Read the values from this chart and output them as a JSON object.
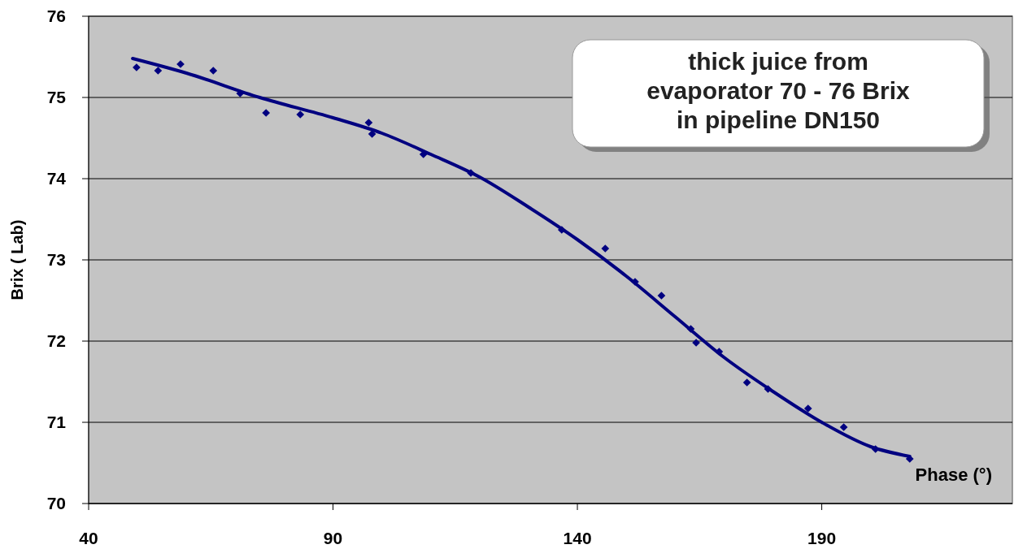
{
  "chart_data": {
    "type": "scatter",
    "xlabel": "Phase (°)",
    "ylabel": "Brix ( Lab)",
    "annotations": [
      "thick juice from\nevaporator 70 - 76 Brix\nin pipeline DN150"
    ],
    "xlim": [
      40,
      229
    ],
    "xticks": [
      40,
      90,
      140,
      190
    ],
    "ylim": [
      70,
      76
    ],
    "yticks": [
      70,
      71,
      72,
      73,
      74,
      75,
      76
    ],
    "grid": "y",
    "series": [
      {
        "color": "#000080",
        "marker": "diamond",
        "x": [
          49.8,
          54.2,
          58.8,
          65.5,
          71,
          76.3,
          83.3,
          97.3,
          98,
          108.5,
          118.2,
          136.8,
          145.7,
          151.8,
          157.2,
          163.2,
          164.3,
          169,
          174.7,
          179,
          187.2,
          194.5,
          201,
          208
        ],
        "values": [
          75.37,
          75.33,
          75.41,
          75.33,
          75.05,
          74.81,
          74.79,
          74.69,
          74.55,
          74.3,
          74.07,
          73.37,
          73.14,
          72.73,
          72.56,
          72.15,
          71.98,
          71.87,
          71.49,
          71.41,
          71.17,
          70.94,
          70.67,
          70.55
        ]
      },
      {
        "type": "line",
        "color": "#000080",
        "line_style": "solid",
        "x": [
          49,
          60,
          75,
          90,
          100,
          110,
          120,
          130,
          140,
          150,
          160,
          170,
          180,
          190,
          200,
          208
        ],
        "values": [
          75.48,
          75.3,
          75.0,
          74.75,
          74.56,
          74.3,
          74.02,
          73.65,
          73.25,
          72.8,
          72.3,
          71.8,
          71.38,
          71.0,
          70.7,
          70.58
        ]
      }
    ]
  }
}
